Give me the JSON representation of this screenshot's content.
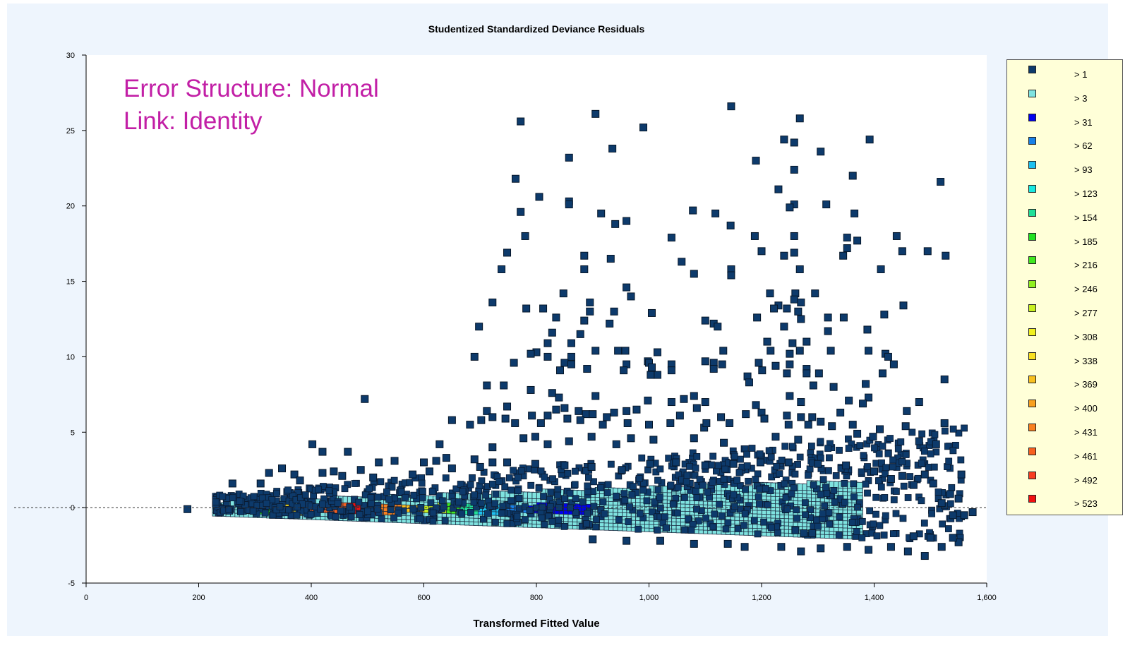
{
  "chart_data": {
    "type": "scatter",
    "title": "Studentized Standardized Deviance Residuals",
    "xlabel": "Transformed Fitted Value",
    "ylabel": "",
    "xlim": [
      0,
      1600
    ],
    "ylim": [
      -5,
      30
    ],
    "xticks": [
      "0",
      "200",
      "400",
      "600",
      "800",
      "1,000",
      "1,200",
      "1,400",
      "1,600"
    ],
    "yticks": [
      "-5",
      "0",
      "5",
      "10",
      "15",
      "20",
      "25",
      "30"
    ],
    "reference_line_y": 0,
    "annotation": [
      "Error Structure: Normal",
      "Link: Identity"
    ],
    "legend": {
      "placement": "right",
      "items": [
        {
          "label": "> 1",
          "color": "#0d3a6b"
        },
        {
          "label": "> 3",
          "color": "#7fe3e0"
        },
        {
          "label": "> 31",
          "color": "#0000ee"
        },
        {
          "label": "> 62",
          "color": "#1880e8"
        },
        {
          "label": "> 93",
          "color": "#1cc0f0"
        },
        {
          "label": "> 123",
          "color": "#18e8e0"
        },
        {
          "label": "> 154",
          "color": "#20e098"
        },
        {
          "label": "> 185",
          "color": "#20e020"
        },
        {
          "label": "> 216",
          "color": "#40e820"
        },
        {
          "label": "> 246",
          "color": "#90f020"
        },
        {
          "label": "> 277",
          "color": "#c8f020"
        },
        {
          "label": "> 308",
          "color": "#f0f020"
        },
        {
          "label": "> 338",
          "color": "#f8e020"
        },
        {
          "label": "> 369",
          "color": "#f8c020"
        },
        {
          "label": "> 400",
          "color": "#f8a020"
        },
        {
          "label": "> 431",
          "color": "#f88020"
        },
        {
          "label": "> 461",
          "color": "#f86020"
        },
        {
          "label": "> 492",
          "color": "#f83c20"
        },
        {
          "label": "> 523",
          "color": "#f01010"
        }
      ]
    },
    "points": [
      [
        772,
        25.6
      ],
      [
        905,
        26.1
      ],
      [
        990,
        25.2
      ],
      [
        1146,
        26.6
      ],
      [
        1268,
        25.8
      ],
      [
        1240,
        24.4
      ],
      [
        1258,
        24.2
      ],
      [
        1392,
        24.4
      ],
      [
        1305,
        23.6
      ],
      [
        858,
        23.2
      ],
      [
        935,
        23.8
      ],
      [
        1190,
        23.0
      ],
      [
        1258,
        22.4
      ],
      [
        1362,
        22.0
      ],
      [
        763,
        21.8
      ],
      [
        1518,
        21.6
      ],
      [
        1230,
        21.1
      ],
      [
        805,
        20.6
      ],
      [
        858,
        20.3
      ],
      [
        858,
        20.1
      ],
      [
        1315,
        20.1
      ],
      [
        1258,
        20.1
      ],
      [
        1250,
        19.9
      ],
      [
        772,
        19.6
      ],
      [
        915,
        19.5
      ],
      [
        960,
        19.0
      ],
      [
        1078,
        19.7
      ],
      [
        1118,
        19.5
      ],
      [
        1365,
        19.5
      ],
      [
        940,
        18.8
      ],
      [
        1145,
        18.7
      ],
      [
        780,
        18.0
      ],
      [
        1040,
        17.9
      ],
      [
        1188,
        18.0
      ],
      [
        1258,
        18.0
      ],
      [
        1352,
        17.9
      ],
      [
        1370,
        17.7
      ],
      [
        1440,
        18.0
      ],
      [
        1200,
        17.0
      ],
      [
        1352,
        17.2
      ],
      [
        1450,
        17.0
      ],
      [
        1495,
        17.0
      ],
      [
        1527,
        16.7
      ],
      [
        748,
        16.9
      ],
      [
        885,
        16.7
      ],
      [
        1240,
        16.7
      ],
      [
        1258,
        16.9
      ],
      [
        1345,
        16.7
      ],
      [
        932,
        16.5
      ],
      [
        1058,
        16.3
      ],
      [
        738,
        15.8
      ],
      [
        885,
        15.8
      ],
      [
        1080,
        15.5
      ],
      [
        1268,
        15.8
      ],
      [
        1146,
        15.8
      ],
      [
        1146,
        15.4
      ],
      [
        1412,
        15.8
      ],
      [
        960,
        14.6
      ],
      [
        848,
        14.2
      ],
      [
        968,
        14.0
      ],
      [
        1215,
        14.2
      ],
      [
        1260,
        14.2
      ],
      [
        1295,
        14.2
      ],
      [
        1258,
        13.8
      ],
      [
        722,
        13.6
      ],
      [
        895,
        13.6
      ],
      [
        1230,
        13.4
      ],
      [
        1270,
        13.6
      ],
      [
        1452,
        13.4
      ],
      [
        782,
        13.2
      ],
      [
        812,
        13.2
      ],
      [
        895,
        13.0
      ],
      [
        938,
        13.0
      ],
      [
        1005,
        12.9
      ],
      [
        1222,
        13.2
      ],
      [
        1245,
        13.2
      ],
      [
        1265,
        13.0
      ],
      [
        835,
        12.6
      ],
      [
        885,
        12.4
      ],
      [
        930,
        12.2
      ],
      [
        1100,
        12.4
      ],
      [
        1115,
        12.2
      ],
      [
        1122,
        12.0
      ],
      [
        1192,
        12.6
      ],
      [
        1270,
        12.5
      ],
      [
        1318,
        12.6
      ],
      [
        1346,
        12.6
      ],
      [
        1418,
        12.8
      ],
      [
        698,
        12.0
      ],
      [
        828,
        11.6
      ],
      [
        1240,
        12.0
      ],
      [
        1318,
        11.7
      ],
      [
        1388,
        11.8
      ],
      [
        820,
        10.9
      ],
      [
        862,
        10.9
      ],
      [
        878,
        11.5
      ],
      [
        1210,
        11.0
      ],
      [
        1255,
        10.9
      ],
      [
        1280,
        11.0
      ],
      [
        800,
        10.3
      ],
      [
        820,
        10.0
      ],
      [
        862,
        10.0
      ],
      [
        905,
        10.4
      ],
      [
        945,
        10.4
      ],
      [
        958,
        10.4
      ],
      [
        1015,
        10.3
      ],
      [
        1132,
        10.4
      ],
      [
        1216,
        10.4
      ],
      [
        1250,
        10.2
      ],
      [
        1268,
        10.4
      ],
      [
        1323,
        10.4
      ],
      [
        1390,
        10.4
      ],
      [
        1420,
        10.2
      ],
      [
        1425,
        10.0
      ],
      [
        690,
        10.0
      ],
      [
        760,
        9.6
      ],
      [
        790,
        10.2
      ],
      [
        850,
        9.6
      ],
      [
        862,
        9.5
      ],
      [
        960,
        9.5
      ],
      [
        998,
        9.7
      ],
      [
        1000,
        9.6
      ],
      [
        1040,
        9.5
      ],
      [
        1100,
        9.7
      ],
      [
        1115,
        9.6
      ],
      [
        1130,
        9.5
      ],
      [
        1195,
        9.6
      ],
      [
        1225,
        9.4
      ],
      [
        1250,
        9.5
      ],
      [
        1280,
        9.2
      ],
      [
        1435,
        9.5
      ],
      [
        842,
        9.1
      ],
      [
        890,
        9.2
      ],
      [
        955,
        9.1
      ],
      [
        1005,
        9.3
      ],
      [
        1015,
        8.8
      ],
      [
        1040,
        9.1
      ],
      [
        1115,
        9.2
      ],
      [
        1175,
        8.7
      ],
      [
        1201,
        9.1
      ],
      [
        1245,
        8.9
      ],
      [
        1280,
        8.9
      ],
      [
        1302,
        8.9
      ],
      [
        1415,
        8.9
      ],
      [
        712,
        8.1
      ],
      [
        742,
        8.1
      ],
      [
        790,
        7.8
      ],
      [
        828,
        7.6
      ],
      [
        1003,
        8.8
      ],
      [
        1178,
        8.3
      ],
      [
        1292,
        8.1
      ],
      [
        1328,
        8.0
      ],
      [
        1385,
        8.2
      ],
      [
        1525,
        8.5
      ],
      [
        495,
        7.2
      ],
      [
        748,
        6.7
      ],
      [
        840,
        7.3
      ],
      [
        905,
        7.4
      ],
      [
        998,
        7.1
      ],
      [
        1040,
        7.0
      ],
      [
        1062,
        7.2
      ],
      [
        1080,
        7.4
      ],
      [
        1100,
        7.0
      ],
      [
        1190,
        6.8
      ],
      [
        1250,
        7.4
      ],
      [
        1270,
        7.0
      ],
      [
        1355,
        7.1
      ],
      [
        1390,
        7.3
      ],
      [
        1380,
        6.9
      ],
      [
        1480,
        7.0
      ],
      [
        712,
        6.4
      ],
      [
        722,
        6.0
      ],
      [
        745,
        5.9
      ],
      [
        792,
        6.1
      ],
      [
        820,
        6.1
      ],
      [
        835,
        6.5
      ],
      [
        850,
        6.6
      ],
      [
        875,
        6.4
      ],
      [
        888,
        6.2
      ],
      [
        900,
        6.2
      ],
      [
        925,
        6.0
      ],
      [
        938,
        6.3
      ],
      [
        960,
        6.4
      ],
      [
        978,
        6.5
      ],
      [
        1055,
        6.1
      ],
      [
        1085,
        6.6
      ],
      [
        1128,
        6.0
      ],
      [
        1172,
        6.2
      ],
      [
        1200,
        6.3
      ],
      [
        1245,
        6.1
      ],
      [
        1270,
        6.0
      ],
      [
        1290,
        6.0
      ],
      [
        1340,
        6.3
      ],
      [
        1458,
        6.4
      ],
      [
        650,
        5.8
      ],
      [
        682,
        5.5
      ],
      [
        702,
        5.8
      ],
      [
        762,
        5.6
      ],
      [
        808,
        5.6
      ],
      [
        855,
        5.9
      ],
      [
        878,
        5.8
      ],
      [
        918,
        5.5
      ],
      [
        962,
        5.6
      ],
      [
        1000,
        5.5
      ],
      [
        1038,
        5.6
      ],
      [
        1098,
        5.3
      ],
      [
        1102,
        5.6
      ],
      [
        1143,
        5.6
      ],
      [
        1205,
        5.9
      ],
      [
        1248,
        5.5
      ],
      [
        1283,
        5.5
      ],
      [
        1305,
        5.7
      ],
      [
        1325,
        5.4
      ],
      [
        1362,
        5.5
      ],
      [
        1456,
        5.4
      ],
      [
        1525,
        5.6
      ],
      [
        1410,
        5.2
      ],
      [
        1480,
        4.4
      ],
      [
        1510,
        4.2
      ],
      [
        402,
        4.2
      ],
      [
        420,
        3.7
      ],
      [
        465,
        3.7
      ],
      [
        628,
        4.2
      ],
      [
        722,
        4.0
      ],
      [
        777,
        4.6
      ],
      [
        798,
        4.7
      ],
      [
        820,
        4.2
      ],
      [
        858,
        4.4
      ],
      [
        898,
        4.7
      ],
      [
        942,
        4.2
      ],
      [
        968,
        4.6
      ],
      [
        1008,
        4.5
      ],
      [
        1080,
        4.6
      ],
      [
        1133,
        4.3
      ],
      [
        1225,
        4.7
      ],
      [
        1265,
        4.5
      ],
      [
        1370,
        4.9
      ],
      [
        1398,
        4.7
      ],
      [
        325,
        2.3
      ],
      [
        348,
        2.6
      ],
      [
        370,
        2.2
      ],
      [
        420,
        2.3
      ],
      [
        440,
        2.4
      ],
      [
        488,
        2.5
      ],
      [
        520,
        3.0
      ],
      [
        548,
        3.1
      ],
      [
        600,
        3.0
      ],
      [
        622,
        3.1
      ],
      [
        640,
        3.3
      ],
      [
        690,
        3.2
      ],
      [
        722,
        3.0
      ],
      [
        260,
        1.6
      ],
      [
        310,
        1.6
      ],
      [
        380,
        1.8
      ],
      [
        455,
        2.1
      ],
      [
        510,
        2.0
      ],
      [
        580,
        2.2
      ],
      [
        610,
        2.4
      ],
      [
        650,
        2.6
      ],
      [
        700,
        2.7
      ],
      [
        748,
        3.0
      ],
      [
        798,
        2.9
      ],
      [
        850,
        2.8
      ],
      [
        898,
        2.7
      ],
      [
        952,
        2.5
      ],
      [
        1002,
        2.9
      ],
      [
        1048,
        3.0
      ],
      [
        1100,
        2.8
      ],
      [
        1150,
        2.9
      ],
      [
        1198,
        3.0
      ],
      [
        1248,
        3.0
      ],
      [
        1300,
        2.9
      ],
      [
        1350,
        2.8
      ],
      [
        1400,
        2.4
      ],
      [
        1450,
        2.1
      ],
      [
        1490,
        2.2
      ],
      [
        1555,
        2.2
      ],
      [
        1430,
        1.9
      ],
      [
        1470,
        1.5
      ],
      [
        1505,
        1.6
      ],
      [
        1535,
        0.9
      ],
      [
        1550,
        0.6
      ],
      [
        1520,
        0.3
      ],
      [
        1540,
        -0.5
      ],
      [
        1560,
        -0.5
      ],
      [
        1575,
        -0.3
      ],
      [
        180,
        -0.1
      ],
      [
        1260,
        -1.5
      ],
      [
        1275,
        -1.7
      ],
      [
        1290,
        -1.7
      ],
      [
        900,
        -2.1
      ],
      [
        960,
        -2.2
      ],
      [
        1020,
        -2.2
      ],
      [
        1080,
        -2.4
      ],
      [
        1140,
        -2.4
      ],
      [
        1170,
        -2.6
      ],
      [
        1235,
        -2.6
      ],
      [
        1270,
        -2.9
      ],
      [
        1305,
        -2.7
      ],
      [
        1352,
        -2.6
      ],
      [
        1390,
        -2.8
      ],
      [
        1430,
        -2.6
      ],
      [
        1460,
        -2.9
      ],
      [
        1490,
        -3.2
      ],
      [
        1520,
        -2.6
      ],
      [
        1550,
        -2.3
      ],
      [
        1540,
        -2.0
      ],
      [
        1500,
        -2.0
      ],
      [
        1470,
        -1.9
      ]
    ]
  }
}
